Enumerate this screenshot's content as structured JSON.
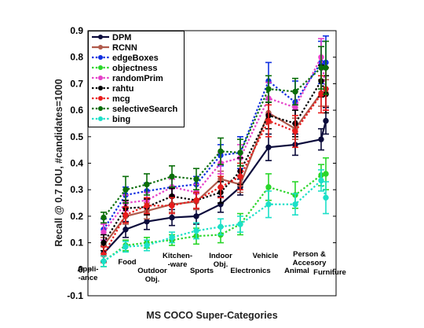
{
  "chart_data": {
    "type": "line",
    "title": "",
    "xlabel": "MS COCO Super-Categories",
    "ylabel": "Recall @ 0.7 IOU, #candidates=1000",
    "ylim": [
      -0.1,
      0.9
    ],
    "yticks": [
      "-0.1",
      "0",
      "0.1",
      "0.2",
      "0.3",
      "0.4",
      "0.5",
      "0.6",
      "0.7",
      "0.8",
      "0.9"
    ],
    "legend_position": "top-left",
    "grid": false,
    "categories": [
      "Appli-\n-ance",
      "Food",
      "Outdoor\nObj.",
      "Kitchen-\n-ware",
      "Sports",
      "Indoor\nObj.",
      "Electronics",
      "Vehicle",
      "Animal",
      "Person &\nAccesory",
      "Furniture"
    ],
    "series": [
      {
        "name": "DPM",
        "color": "#0b0b3b",
        "style": "solid",
        "marker": "circle",
        "values": [
          0.06,
          0.15,
          0.18,
          0.195,
          0.2,
          0.245,
          0.31,
          0.46,
          0.47,
          0.49,
          0.56
        ],
        "errors": [
          0.03,
          0.03,
          0.03,
          0.03,
          0.03,
          0.03,
          0.03,
          0.05,
          0.04,
          0.04,
          0.05
        ]
      },
      {
        "name": "RCNN",
        "color": "#b05a4b",
        "style": "solid",
        "marker": "circle",
        "values": [
          0.09,
          0.2,
          0.22,
          0.245,
          0.255,
          0.34,
          0.32,
          0.59,
          0.53,
          0.665,
          0.665
        ],
        "errors": [
          0.03,
          0.03,
          0.03,
          0.03,
          0.03,
          0.03,
          0.03,
          0.04,
          0.04,
          0.05,
          0.05
        ]
      },
      {
        "name": "edgeBoxes",
        "color": "#1030e0",
        "style": "dotted",
        "marker": "circle",
        "values": [
          0.15,
          0.28,
          0.295,
          0.31,
          0.32,
          0.43,
          0.44,
          0.71,
          0.63,
          0.78,
          0.78
        ],
        "errors": [
          0.04,
          0.03,
          0.03,
          0.03,
          0.03,
          0.04,
          0.06,
          0.07,
          0.08,
          0.08,
          0.1
        ]
      },
      {
        "name": "objectness",
        "color": "#2ad62a",
        "style": "dotted",
        "marker": "circle",
        "values": [
          0.03,
          0.09,
          0.1,
          0.11,
          0.125,
          0.13,
          0.17,
          0.31,
          0.28,
          0.355,
          0.36
        ],
        "errors": [
          0.02,
          0.02,
          0.02,
          0.02,
          0.03,
          0.03,
          0.04,
          0.05,
          0.05,
          0.04,
          0.06
        ]
      },
      {
        "name": "randomPrim",
        "color": "#e540c8",
        "style": "dotted",
        "marker": "circle",
        "values": [
          0.14,
          0.25,
          0.26,
          0.31,
          0.29,
          0.4,
          0.42,
          0.645,
          0.61,
          0.8,
          0.68
        ],
        "errors": [
          0.03,
          0.03,
          0.03,
          0.03,
          0.03,
          0.04,
          0.05,
          0.06,
          0.06,
          0.07,
          0.08
        ]
      },
      {
        "name": "rahtu",
        "color": "#000000",
        "style": "dotted",
        "marker": "circle",
        "values": [
          0.1,
          0.23,
          0.235,
          0.275,
          0.26,
          0.29,
          0.37,
          0.58,
          0.55,
          0.71,
          0.66
        ],
        "errors": [
          0.03,
          0.03,
          0.03,
          0.03,
          0.03,
          0.04,
          0.05,
          0.05,
          0.05,
          0.06,
          0.07
        ]
      },
      {
        "name": "mcg",
        "color": "#e81c1c",
        "style": "dotted",
        "marker": "circle",
        "values": [
          0.055,
          0.205,
          0.24,
          0.24,
          0.26,
          0.31,
          0.35,
          0.56,
          0.52,
          0.66,
          0.68
        ],
        "errors": [
          0.03,
          0.03,
          0.03,
          0.03,
          0.03,
          0.04,
          0.05,
          0.06,
          0.06,
          0.07,
          0.08
        ]
      },
      {
        "name": "selectiveSearch",
        "color": "#0a6e0a",
        "style": "dotted",
        "marker": "circle",
        "values": [
          0.195,
          0.3,
          0.32,
          0.35,
          0.34,
          0.445,
          0.44,
          0.68,
          0.67,
          0.76,
          0.76
        ],
        "errors": [
          0.02,
          0.05,
          0.04,
          0.04,
          0.04,
          0.05,
          0.05,
          0.05,
          0.05,
          0.08,
          0.1
        ]
      },
      {
        "name": "bing",
        "color": "#1ce0c8",
        "style": "dotted",
        "marker": "circle",
        "values": [
          0.03,
          0.085,
          0.09,
          0.12,
          0.145,
          0.16,
          0.17,
          0.245,
          0.245,
          0.335,
          0.27
        ],
        "errors": [
          0.02,
          0.02,
          0.02,
          0.02,
          0.03,
          0.03,
          0.03,
          0.05,
          0.04,
          0.04,
          0.06
        ]
      }
    ]
  }
}
